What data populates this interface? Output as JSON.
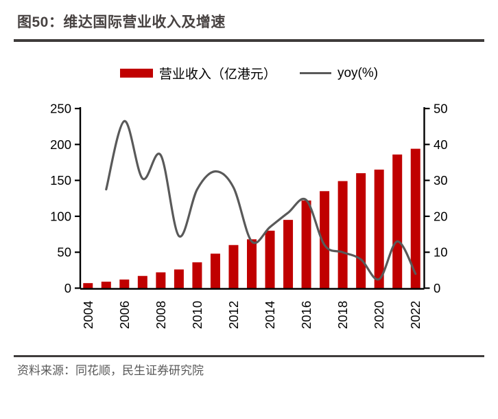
{
  "header": {
    "title": "图50：维达国际营业收入及增速"
  },
  "legend": {
    "revenue_label": "营业收入（亿港元）",
    "yoy_label": "yoy(%)"
  },
  "footer": {
    "source": "资料来源：同花顺，民生证券研究院"
  },
  "colors": {
    "bar": "#c00000",
    "line": "#595959",
    "axis": "#000000",
    "tick_text": "#000000",
    "rule": "#3f3c3b"
  },
  "chart_data": {
    "type": "bar",
    "subtype": "bar+smooth-line, dual axis",
    "title": "图50：维达国际营业收入及增速",
    "categories": [
      2004,
      2005,
      2006,
      2007,
      2008,
      2009,
      2010,
      2011,
      2012,
      2013,
      2014,
      2015,
      2016,
      2017,
      2018,
      2019,
      2020,
      2021,
      2022
    ],
    "series": [
      {
        "name": "营业收入（亿港元）",
        "type": "bar",
        "axis": "left",
        "color": "#c00000",
        "values": [
          7,
          9,
          12,
          17,
          22,
          26,
          36,
          48,
          60,
          68,
          80,
          95,
          122,
          135,
          149,
          160,
          165,
          186,
          194
        ]
      },
      {
        "name": "yoy(%)",
        "type": "line",
        "axis": "right",
        "color": "#595959",
        "smooth": true,
        "values": [
          null,
          27.5,
          46.5,
          30.5,
          37,
          14.5,
          27.5,
          32.5,
          28,
          13,
          17,
          21,
          24.5,
          12,
          10,
          8,
          2.5,
          13,
          4
        ]
      }
    ],
    "left_axis": {
      "min": 0,
      "max": 250,
      "ticks": [
        0,
        50,
        100,
        150,
        200,
        250
      ]
    },
    "right_axis": {
      "min": 0,
      "max": 50,
      "ticks": [
        0,
        10,
        20,
        30,
        40,
        50
      ]
    },
    "x_tick_labels": [
      "2004",
      "2006",
      "2008",
      "2010",
      "2012",
      "2014",
      "2016",
      "2018",
      "2020",
      "2022"
    ],
    "grid": false,
    "legend_position": "top"
  }
}
